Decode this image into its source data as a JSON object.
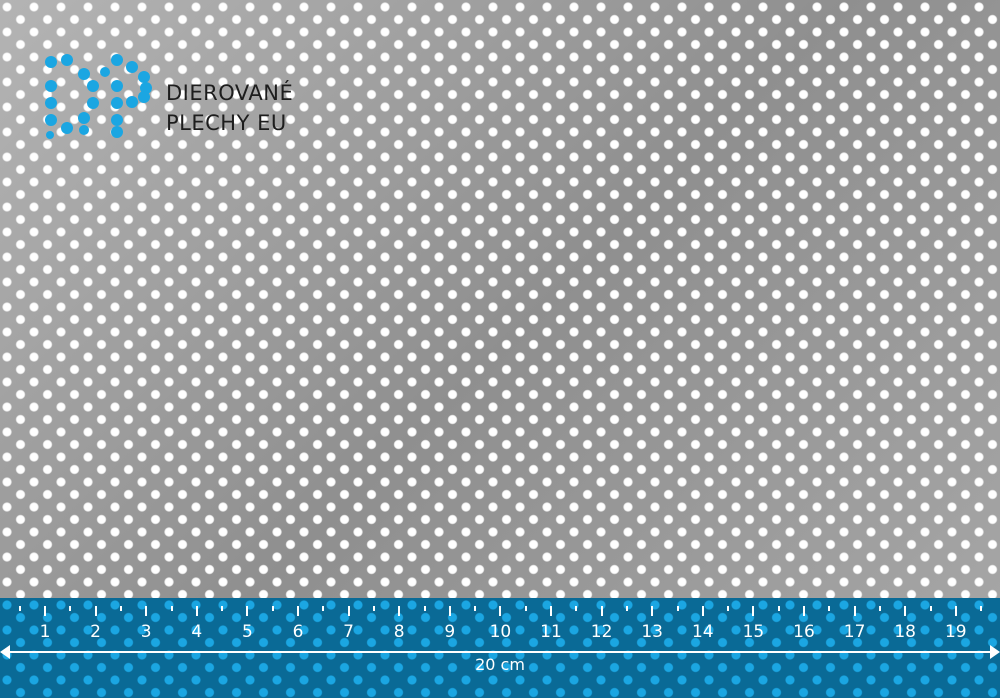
{
  "logo": {
    "mark": "DP",
    "line1": "DIEROVANÉ",
    "line2": "PLECHY EU",
    "color": "#1ba6e2"
  },
  "ruler": {
    "unit_labels": [
      "1",
      "2",
      "3",
      "4",
      "5",
      "6",
      "7",
      "8",
      "9",
      "10",
      "11",
      "12",
      "13",
      "14",
      "15",
      "16",
      "17",
      "18",
      "19"
    ],
    "length_label": "20 cm",
    "color": "#0a6a96"
  }
}
